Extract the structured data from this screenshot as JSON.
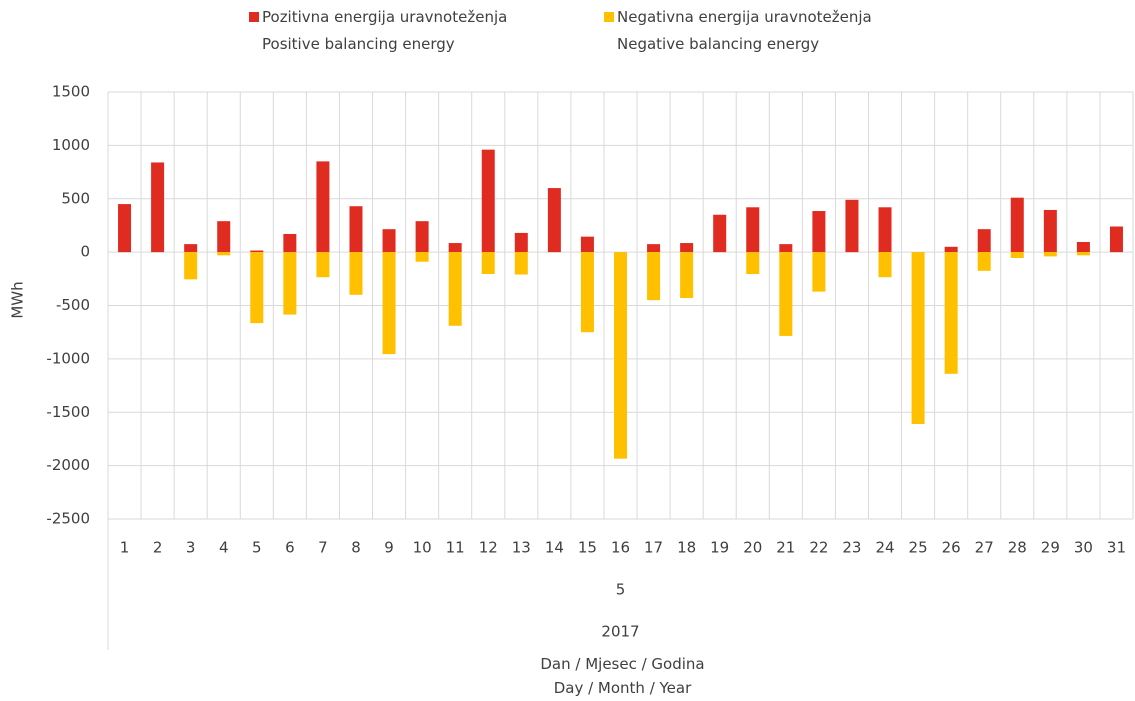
{
  "chart_data": {
    "type": "bar",
    "ylabel": "MWh",
    "xlabel": "Dan / Mjesec / Godina\nDay / Month / Year",
    "x_group_labels": [
      "5",
      "2017"
    ],
    "categories": [
      "1",
      "2",
      "3",
      "4",
      "5",
      "6",
      "7",
      "8",
      "9",
      "10",
      "11",
      "12",
      "13",
      "14",
      "15",
      "16",
      "17",
      "18",
      "19",
      "20",
      "21",
      "22",
      "23",
      "24",
      "25",
      "26",
      "27",
      "28",
      "29",
      "30",
      "31"
    ],
    "series": [
      {
        "name": "Pozitivna energija uravnoteženja\nPositive balancing energy",
        "color": "#e02b20",
        "values": [
          450,
          840,
          75,
          290,
          15,
          170,
          850,
          430,
          215,
          290,
          85,
          960,
          180,
          600,
          145,
          0,
          75,
          85,
          350,
          420,
          75,
          385,
          490,
          420,
          0,
          50,
          215,
          510,
          395,
          95,
          240
        ]
      },
      {
        "name": "Negativna energija uravnoteženja\nNegative balancing energy",
        "color": "#ffc000",
        "values": [
          0,
          0,
          -255,
          -30,
          -665,
          -585,
          -235,
          -400,
          -955,
          -90,
          -690,
          -205,
          -210,
          0,
          -750,
          -1935,
          -450,
          -430,
          0,
          -205,
          -785,
          -370,
          0,
          -235,
          -1610,
          -1140,
          -175,
          -55,
          -40,
          -30,
          0
        ]
      }
    ],
    "ylim": [
      -2500,
      1500
    ],
    "yticks": [
      1500,
      1000,
      500,
      0,
      -500,
      -1000,
      -1500,
      -2000,
      -2500
    ],
    "grid": true
  }
}
